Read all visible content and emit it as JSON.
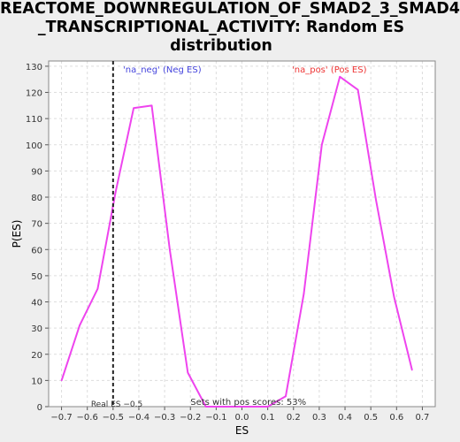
{
  "chart_data": {
    "type": "line",
    "title_lines": [
      "REACTOME_DOWNREGULATION_OF_SMAD2_3_SMAD4",
      "_TRANSCRIPTIONAL_ACTIVITY: Random ES",
      "distribution"
    ],
    "xlabel": "ES",
    "ylabel": "P(ES)",
    "xlim": [
      -0.75,
      0.75
    ],
    "ylim": [
      0,
      132
    ],
    "x_ticks": [
      -0.7,
      -0.6,
      -0.5,
      -0.4,
      -0.3,
      -0.2,
      -0.1,
      0.0,
      0.1,
      0.2,
      0.3,
      0.4,
      0.5,
      0.6,
      0.7
    ],
    "x_tick_labels": [
      "−0.7",
      "−0.6",
      "−0.5",
      "−0.4",
      "−0.3",
      "−0.2",
      "−0.1",
      "0.0",
      "0.1",
      "0.2",
      "0.3",
      "0.4",
      "0.5",
      "0.6",
      "0.7"
    ],
    "y_ticks": [
      0,
      10,
      20,
      30,
      40,
      50,
      60,
      70,
      80,
      90,
      100,
      110,
      120,
      130
    ],
    "grid": true,
    "series": [
      {
        "name": "Random ES distribution",
        "color": "#ee44ee",
        "x": [
          -0.7,
          -0.63,
          -0.56,
          -0.49,
          -0.42,
          -0.35,
          -0.28,
          -0.21,
          -0.14,
          0.1,
          0.17,
          0.24,
          0.31,
          0.38,
          0.45,
          0.52,
          0.59,
          0.66
        ],
        "y": [
          10,
          31,
          45,
          82,
          114,
          115,
          60,
          13,
          0,
          0,
          4,
          43,
          100,
          126,
          121,
          79,
          42,
          14
        ]
      }
    ],
    "real_es": -0.5,
    "real_es_color": "#222222",
    "annotations": {
      "neg_label": "'na_neg' (Neg ES)",
      "neg_color": "#4444dd",
      "pos_label": "'na_pos' (Pos ES)",
      "pos_color": "#ee3333",
      "real_es_label": "Real ES −0.5",
      "pos_scores_label": "Sets with pos scores: 53%"
    }
  }
}
